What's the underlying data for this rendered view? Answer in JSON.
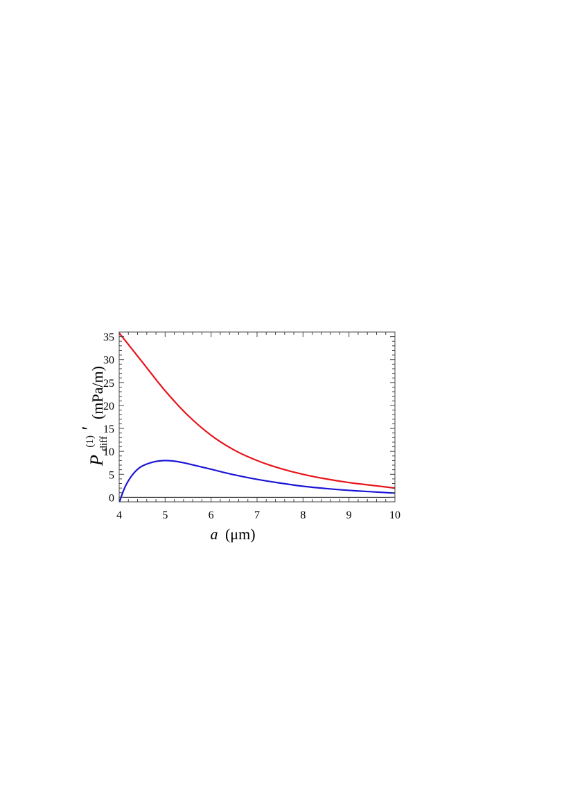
{
  "chart_data": {
    "type": "line",
    "title": "",
    "xlabel": {
      "symbol": "a",
      "unit": "(μm)"
    },
    "ylabel": {
      "symbol": "P",
      "superscript": "(1)",
      "subscript": "diff",
      "prime": "′",
      "unit": "(mPa/m)"
    },
    "xlim": [
      4,
      10
    ],
    "ylim": [
      -1,
      36
    ],
    "xticks": [
      4,
      5,
      6,
      7,
      8,
      9,
      10
    ],
    "yticks": [
      0,
      5,
      10,
      15,
      20,
      25,
      30,
      35
    ],
    "grid": false,
    "zero_line": true,
    "series": [
      {
        "color": "#e8141b",
        "x": [
          4,
          4.5,
          5,
          5.5,
          6,
          6.5,
          7,
          7.5,
          8,
          8.5,
          9,
          9.5,
          10
        ],
        "y": [
          35.8,
          29.5,
          23.2,
          17.8,
          13.5,
          10.3,
          8.0,
          6.3,
          5.0,
          4.0,
          3.2,
          2.6,
          2.0
        ]
      },
      {
        "color": "#1a14d6",
        "x": [
          4,
          4.1,
          4.2,
          4.35,
          4.5,
          4.75,
          5,
          5.25,
          5.5,
          6,
          6.5,
          7,
          7.5,
          8,
          8.5,
          9,
          9.5,
          10
        ],
        "y": [
          -1.2,
          1.6,
          3.6,
          5.6,
          6.8,
          7.7,
          8.0,
          7.8,
          7.3,
          6.1,
          4.9,
          3.9,
          3.1,
          2.4,
          1.9,
          1.5,
          1.2,
          0.9
        ]
      }
    ]
  }
}
